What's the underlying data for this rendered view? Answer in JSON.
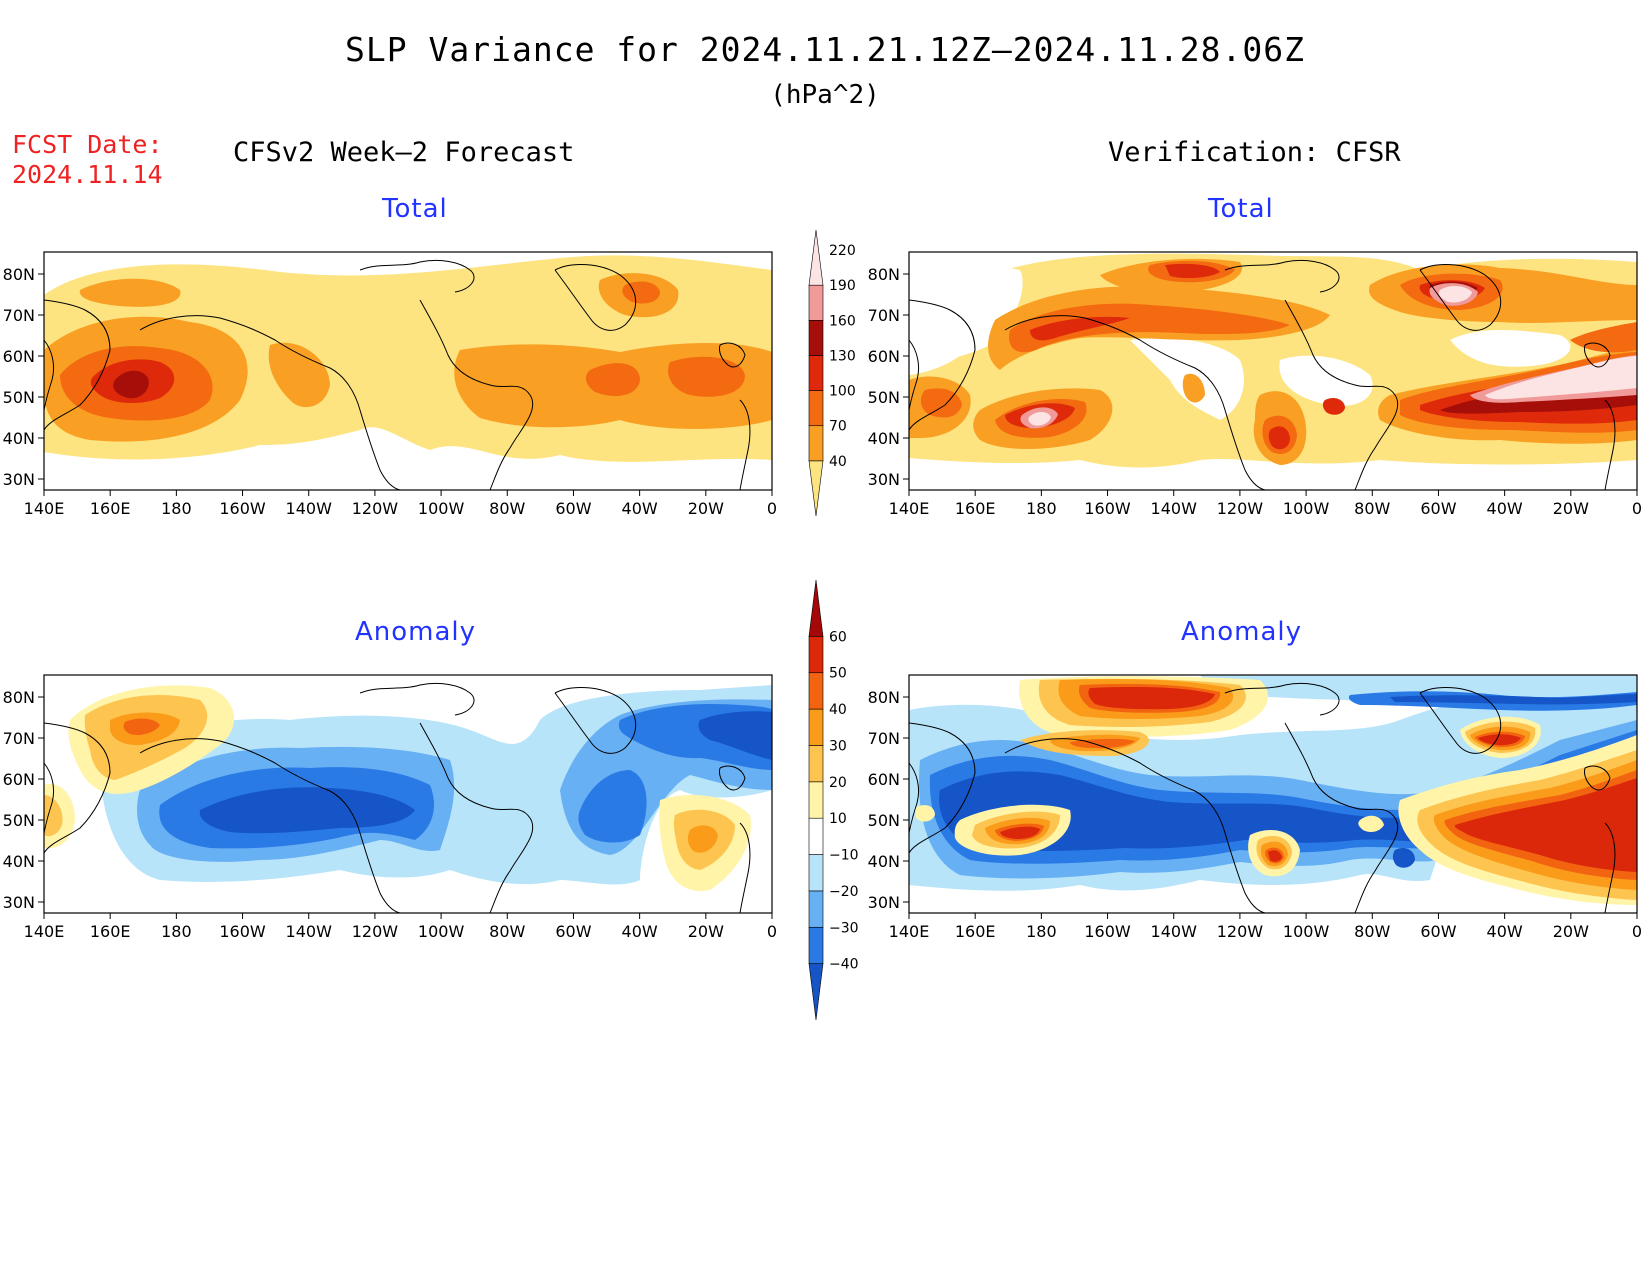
{
  "header": {
    "title": "SLP Variance for 2024.11.21.12Z–2024.11.28.06Z",
    "units": "(hPa^2)",
    "fcst_label": "FCST Date:",
    "fcst_date": "2024.11.14"
  },
  "columns": {
    "forecast_heading": "CFSv2 Week–2 Forecast",
    "verification_heading": "Verification: CFSR"
  },
  "panels": {
    "forecast_total_title": "Total",
    "forecast_anomaly_title": "Anomaly",
    "verification_total_title": "Total",
    "verification_anomaly_title": "Anomaly"
  },
  "axes": {
    "lat_labels": [
      "80N",
      "70N",
      "60N",
      "50N",
      "40N",
      "30N"
    ],
    "lon_labels": [
      "140E",
      "160E",
      "180",
      "160W",
      "140W",
      "120W",
      "100W",
      "80W",
      "60W",
      "40W",
      "20W",
      "0"
    ]
  },
  "colorbars": {
    "total": {
      "levels": [
        "40",
        "70",
        "100",
        "130",
        "160",
        "190",
        "220"
      ],
      "colors": [
        "#fde480",
        "#f9a024",
        "#f36a10",
        "#de2a0a",
        "#a60e0a",
        "#f19a9a",
        "#fce4e4"
      ]
    },
    "anomaly": {
      "levels": [
        "−40",
        "−30",
        "−20",
        "−10",
        "10",
        "20",
        "30",
        "40",
        "50",
        "60"
      ],
      "colors": [
        "#1555c8",
        "#2a7ae6",
        "#68b0f4",
        "#b8e4fa",
        "#ffffff",
        "#fff4a8",
        "#fdc450",
        "#fa9c1a",
        "#f36410",
        "#dc280a",
        "#a40808"
      ]
    }
  },
  "palette": {
    "total": [
      "#fde480",
      "#f9a024",
      "#f36a10",
      "#de2a0a",
      "#a60e0a",
      "#f19a9a",
      "#fce4e4"
    ],
    "anomaly_pos": [
      "#fff4a8",
      "#fdc450",
      "#fa9c1a",
      "#f36410",
      "#dc280a",
      "#a40808"
    ],
    "anomaly_neg": [
      "#b8e4fa",
      "#68b0f4",
      "#2a7ae6",
      "#1555c8"
    ],
    "title_blue": "#2233ff",
    "fcst_red": "#ee2222"
  }
}
